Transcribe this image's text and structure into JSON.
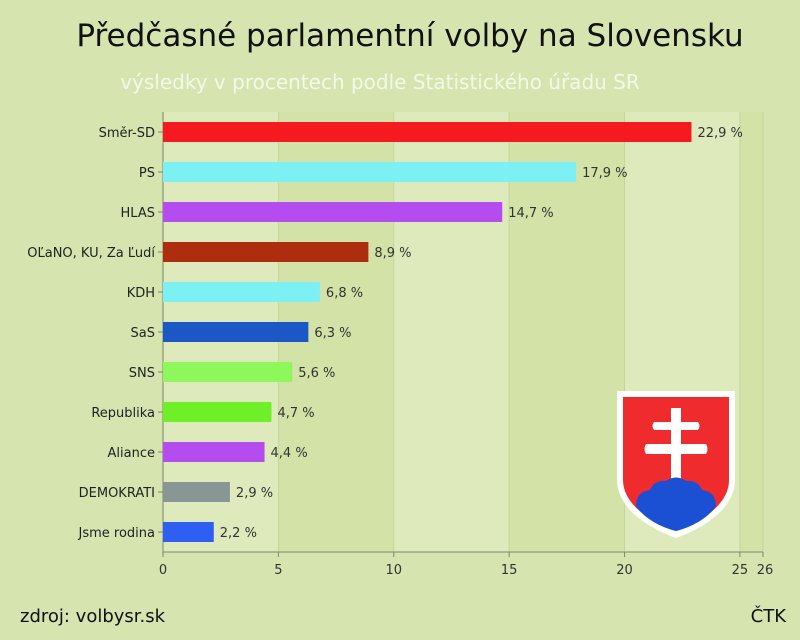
{
  "title": "Předčasné parlamentní volby na Slovensku",
  "subtitle": "výsledky v procentech podle Statistického úřadu  SR",
  "source": "zdroj: volbysr.sk",
  "agency": "ČTK",
  "chart_data": {
    "type": "bar",
    "orientation": "horizontal",
    "categories": [
      "Směr-SD",
      "PS",
      "HLAS",
      "OĽaNO, KU, Za Ľudí",
      "KDH",
      "SaS",
      "SNS",
      "Republika",
      "Aliance",
      "DEMOKRATI",
      "Jsme rodina"
    ],
    "values": [
      22.9,
      17.9,
      14.7,
      8.9,
      6.8,
      6.3,
      5.6,
      4.7,
      4.4,
      2.9,
      2.2
    ],
    "value_labels": [
      "22,9 %",
      "17,9 %",
      "14,7 %",
      "8,9 %",
      "6,8 %",
      "6,3 %",
      "5,6 %",
      "4,7 %",
      "4,4 %",
      "2,9 %",
      "2,2 %"
    ],
    "colors": [
      "#f41a1f",
      "#7df0f4",
      "#b54cf0",
      "#ad2d0e",
      "#7df0f4",
      "#1b58c6",
      "#8ef75c",
      "#6ef028",
      "#b54cf0",
      "#8a9596",
      "#2f5ff2"
    ],
    "xlim": [
      0,
      26
    ],
    "x_ticks": [
      0,
      5,
      10,
      15,
      20,
      25,
      26
    ],
    "grid": true
  },
  "emblem": "slovak-coat-of-arms-icon"
}
